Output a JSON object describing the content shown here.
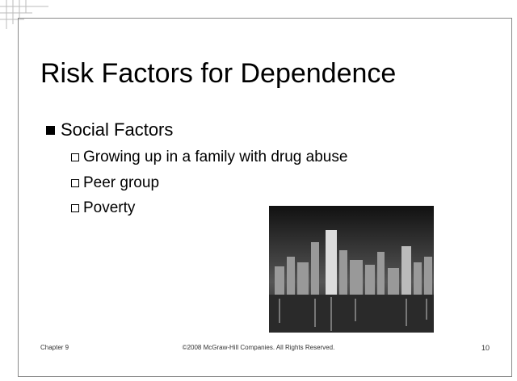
{
  "slide": {
    "title": "Risk Factors for Dependence",
    "bullets": [
      {
        "text": "Social Factors",
        "items": [
          "Growing up in a family with drug abuse",
          "Peer group",
          "Poverty"
        ]
      }
    ]
  },
  "footer": {
    "left": "Chapter 9",
    "center": "©2008 McGraw-Hill Companies. All Rights Reserved.",
    "right": "10"
  }
}
